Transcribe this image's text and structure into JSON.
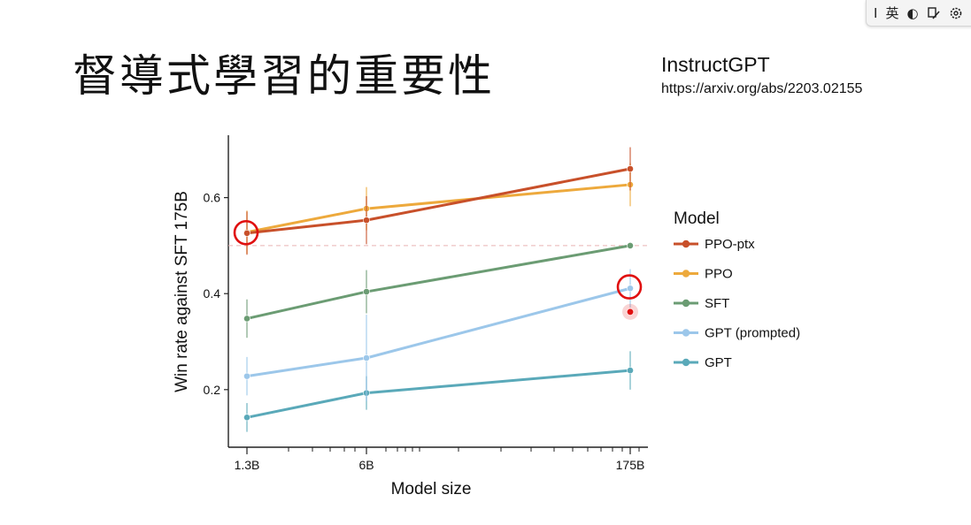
{
  "slide": {
    "title": "督導式學習的重要性",
    "reference_name": "InstructGPT",
    "reference_url": "https://arxiv.org/abs/2203.02155"
  },
  "ime_toolbar": {
    "items": [
      {
        "name": "text-cursor-icon",
        "label": "I"
      },
      {
        "name": "language-mode",
        "label": "英"
      },
      {
        "name": "halfwidth-icon",
        "label": "◐"
      },
      {
        "name": "ime-pad-icon",
        "label": ""
      },
      {
        "name": "settings-icon",
        "label": ""
      }
    ]
  },
  "chart_data": {
    "type": "line",
    "x": [
      "1.3B",
      "6B",
      "175B"
    ],
    "x_scale": "log",
    "xlabel": "Model size",
    "ylabel": "Win rate against SFT 175B",
    "yticks": [
      0.2,
      0.4,
      0.6
    ],
    "ylim": [
      0.08,
      0.73
    ],
    "reference_line": 0.5,
    "legend_title": "Model",
    "legend_position": "right",
    "series": [
      {
        "name": "PPO-ptx",
        "color": "#c8502a",
        "values": [
          0.526,
          0.553,
          0.66
        ],
        "err": [
          0.045,
          0.05,
          0.045
        ]
      },
      {
        "name": "PPO",
        "color": "#eda93c",
        "values": [
          0.528,
          0.577,
          0.627
        ],
        "err": [
          0.045,
          0.045,
          0.045
        ]
      },
      {
        "name": "SFT",
        "color": "#6b9c73",
        "values": [
          0.348,
          0.404,
          0.5
        ],
        "err": [
          0.04,
          0.045,
          0.0
        ]
      },
      {
        "name": "GPT (prompted)",
        "color": "#9cc7ea",
        "values": [
          0.228,
          0.266,
          0.411
        ],
        "err": [
          0.04,
          0.09,
          0.04
        ]
      },
      {
        "name": "GPT",
        "color": "#5aa9b9",
        "values": [
          0.142,
          0.193,
          0.24
        ],
        "err": [
          0.03,
          0.035,
          0.04
        ]
      }
    ],
    "annotations": [
      {
        "type": "circle-highlight",
        "at": "1.3B",
        "y": 0.527,
        "color": "#e01010"
      },
      {
        "type": "circle-highlight",
        "at": "175B",
        "y": 0.414,
        "color": "#e01010"
      },
      {
        "type": "laser-pointer",
        "at": "175B",
        "y": 0.362,
        "color": "#e01010"
      }
    ],
    "grid": false
  }
}
